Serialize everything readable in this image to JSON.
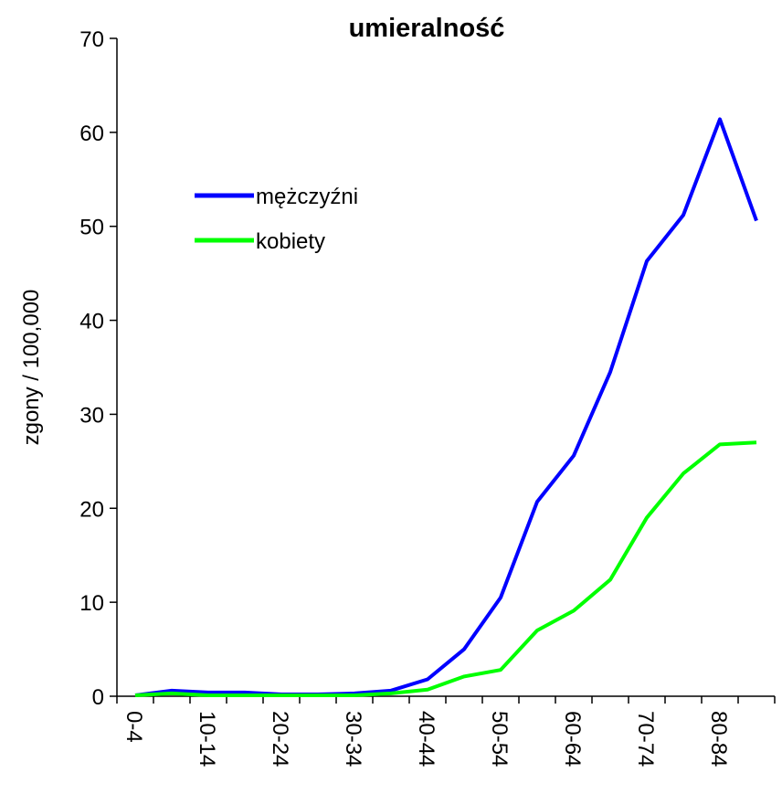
{
  "chart_data": {
    "type": "line",
    "title": "umieralność",
    "y_label": "zgony / 100,000",
    "categories": [
      "0-4",
      null,
      "10-14",
      null,
      "20-24",
      null,
      "30-34",
      null,
      "40-44",
      null,
      "50-54",
      null,
      "60-64",
      null,
      "70-74",
      null,
      "80-84",
      null
    ],
    "series": [
      {
        "name": "mężczyźni",
        "color": "#0000ff",
        "values": [
          0.1,
          0.6,
          0.4,
          0.4,
          0.2,
          0.2,
          0.3,
          0.6,
          1.8,
          5.0,
          10.5,
          20.7,
          25.6,
          34.5,
          46.3,
          51.2,
          61.4,
          50.6
        ]
      },
      {
        "name": "kobiety",
        "color": "#00ff00",
        "values": [
          0.1,
          0.3,
          0.1,
          0.1,
          0.1,
          0.1,
          0.1,
          0.3,
          0.7,
          2.1,
          2.8,
          7.0,
          9.1,
          12.4,
          19.0,
          23.7,
          26.8,
          27.0
        ]
      }
    ],
    "ylim": [
      0,
      70
    ],
    "yticks": [
      0,
      10,
      20,
      30,
      40,
      50,
      60,
      70
    ]
  }
}
